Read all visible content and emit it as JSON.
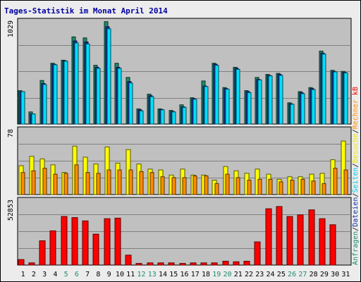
{
  "chart_data": {
    "type": "bar",
    "title": "Tages-Statistik im Monat April 2014",
    "categories": [
      "1",
      "2",
      "3",
      "4",
      "5",
      "6",
      "7",
      "8",
      "9",
      "10",
      "11",
      "12",
      "13",
      "14",
      "15",
      "16",
      "17",
      "18",
      "19",
      "20",
      "21",
      "22",
      "23",
      "24",
      "25",
      "26",
      "27",
      "28",
      "29",
      "30",
      "31"
    ],
    "weekend_days": [
      "5",
      "6",
      "12",
      "13",
      "19",
      "20",
      "26",
      "27"
    ],
    "panels": [
      {
        "ymax_label": "1029",
        "ylim": [
          0,
          1029
        ],
        "series": [
          {
            "name": "Anfragen",
            "color": "#1e8a6e",
            "values": [
              330,
              120,
              430,
              600,
              630,
              860,
              850,
              580,
              1010,
              600,
              460,
              150,
              295,
              150,
              135,
              190,
              260,
              425,
              600,
              360,
              560,
              330,
              460,
              490,
              500,
              210,
              320,
              360,
              720,
              530,
              520
            ]
          },
          {
            "name": "Dateien",
            "color": "#1030a0",
            "values": [
              320,
              100,
              400,
              590,
              625,
              820,
              810,
              560,
              960,
              560,
              420,
              140,
              280,
              145,
              125,
              170,
              250,
              375,
              590,
              350,
              550,
              320,
              440,
              480,
              490,
              200,
              310,
              350,
              700,
              520,
              510
            ]
          },
          {
            "name": "Seiten",
            "color": "#00e0ff",
            "values": [
              320,
              100,
              390,
              585,
              620,
              800,
              790,
              550,
              940,
              550,
              405,
              130,
              270,
              140,
              120,
              165,
              245,
              370,
              580,
              345,
              540,
              310,
              435,
              475,
              480,
              195,
              300,
              340,
              690,
              515,
              505
            ]
          }
        ]
      },
      {
        "ymax_label": "78",
        "ylim": [
          0,
          78
        ],
        "series": [
          {
            "name": "Besuche",
            "color": "#ffff00",
            "values": [
              34,
              45,
              42,
              35,
              26,
              57,
              44,
              36,
              56,
              37,
              53,
              36,
              30,
              29,
              23,
              30,
              23,
              23,
              17,
              33,
              28,
              25,
              30,
              24,
              18,
              21,
              21,
              24,
              25,
              41,
              63
            ]
          },
          {
            "name": "Rechner",
            "color": "#ff8c00",
            "values": [
              26,
              28,
              31,
              24,
              25,
              35,
              26,
              25,
              29,
              29,
              29,
              27,
              26,
              21,
              20,
              20,
              22,
              22,
              13,
              24,
              20,
              17,
              18,
              18,
              15,
              17,
              18,
              16,
              13,
              31,
              29
            ]
          }
        ]
      },
      {
        "ymax_label": "52853",
        "ylim": [
          0,
          60000
        ],
        "series": [
          {
            "name": "kB",
            "color": "#ff0000",
            "values": [
              5000,
              2000,
              22000,
              31000,
              44000,
              43000,
              40000,
              28000,
              42000,
              42500,
              9000,
              1500,
              2000,
              2000,
              2000,
              1500,
              2000,
              2000,
              2000,
              3500,
              3000,
              3500,
              21000,
              51000,
              53000,
              44000,
              45500,
              50000,
              42000,
              36500,
              0
            ]
          }
        ]
      }
    ],
    "legend": {
      "placement": "right-vertical",
      "entries": [
        {
          "text": "Anfragen",
          "color": "#1e8a6e"
        },
        {
          "text": "Dateien",
          "color": "#1030a0"
        },
        {
          "text": "Seiten",
          "color": "#00c8e8"
        },
        {
          "text": "Besuche",
          "color": "#e8e800"
        },
        {
          "text": "Rechner",
          "color": "#ff8c00"
        },
        {
          "text": "kB",
          "color": "#ff0000"
        }
      ]
    },
    "colors": {
      "title": "#0000a0",
      "weekday_label": "#000000",
      "weekend_label": "#1e8a6e",
      "plot_background": "#c0c0c0",
      "frame": "#ececec"
    }
  }
}
